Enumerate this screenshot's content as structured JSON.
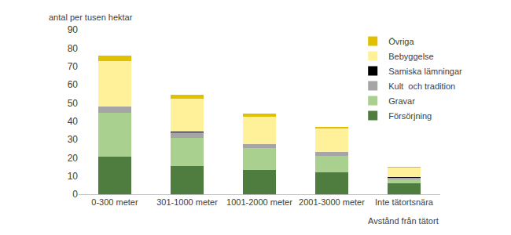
{
  "chart_data": {
    "type": "bar",
    "stacked": true,
    "y_label": "antal per tusen hektar",
    "x_label": "Avstånd från tätort",
    "categories": [
      "0-300 meter",
      "301-1000 meter",
      "1001-2000 meter",
      "2001-3000 meter",
      "Inte tätortsnära"
    ],
    "series": [
      {
        "name": "Försörjning",
        "color": "#4f7d3f",
        "values": [
          20.5,
          15.5,
          13.5,
          12,
          6
        ]
      },
      {
        "name": "Gravar",
        "color": "#a9d08e",
        "values": [
          24,
          15.5,
          12,
          9,
          2
        ]
      },
      {
        "name": "Kult  och tradition",
        "color": "#a5a5a5",
        "values": [
          3.5,
          3,
          2,
          2,
          1
        ]
      },
      {
        "name": "Samiska lämningar",
        "color": "#000000",
        "values": [
          0,
          0.5,
          0,
          0,
          0.5
        ]
      },
      {
        "name": "Bebyggelse",
        "color": "#fff199",
        "values": [
          25,
          18,
          15,
          13,
          5
        ]
      },
      {
        "name": "Övriga",
        "color": "#e0c000",
        "values": [
          3,
          2,
          1.5,
          1,
          0.5
        ]
      }
    ],
    "ylim": [
      0,
      90
    ],
    "yticks": [
      0,
      10,
      20,
      30,
      40,
      50,
      60,
      70,
      80,
      90
    ],
    "grid": false,
    "legend": "top-right"
  }
}
